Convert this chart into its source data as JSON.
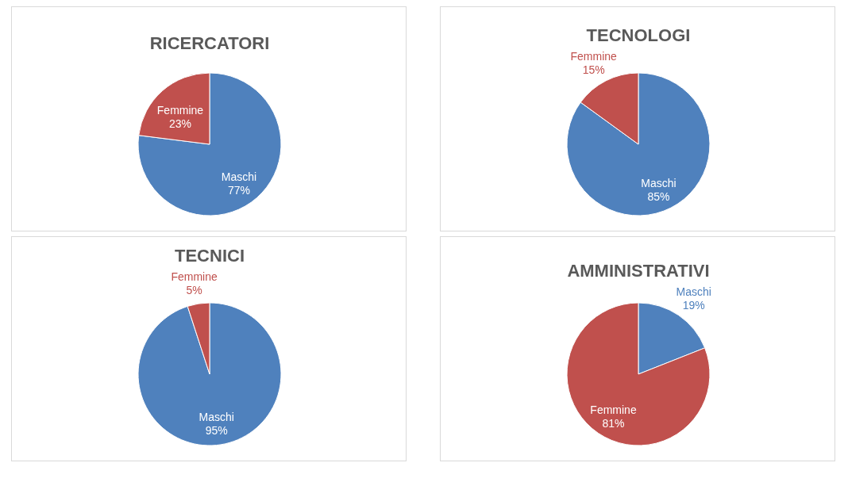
{
  "chart_data": [
    {
      "type": "pie",
      "title": "RICERCATORI",
      "categories": [
        "Maschi",
        "Femmine"
      ],
      "values": [
        77,
        23
      ],
      "value_labels": [
        "77%",
        "23%"
      ],
      "colors": [
        "#4f81bd",
        "#c0504d"
      ]
    },
    {
      "type": "pie",
      "title": "TECNOLOGI",
      "categories": [
        "Maschi",
        "Femmine"
      ],
      "values": [
        85,
        15
      ],
      "value_labels": [
        "85%",
        "15%"
      ],
      "colors": [
        "#4f81bd",
        "#c0504d"
      ]
    },
    {
      "type": "pie",
      "title": "TECNICI",
      "categories": [
        "Maschi",
        "Femmine"
      ],
      "values": [
        95,
        5
      ],
      "value_labels": [
        "95%",
        "5%"
      ],
      "colors": [
        "#4f81bd",
        "#c0504d"
      ]
    },
    {
      "type": "pie",
      "title": "AMMINISTRATIVI",
      "categories": [
        "Maschi",
        "Femmine"
      ],
      "values": [
        19,
        81
      ],
      "value_labels": [
        "19%",
        "81%"
      ],
      "colors": [
        "#4f81bd",
        "#c0504d"
      ]
    }
  ]
}
